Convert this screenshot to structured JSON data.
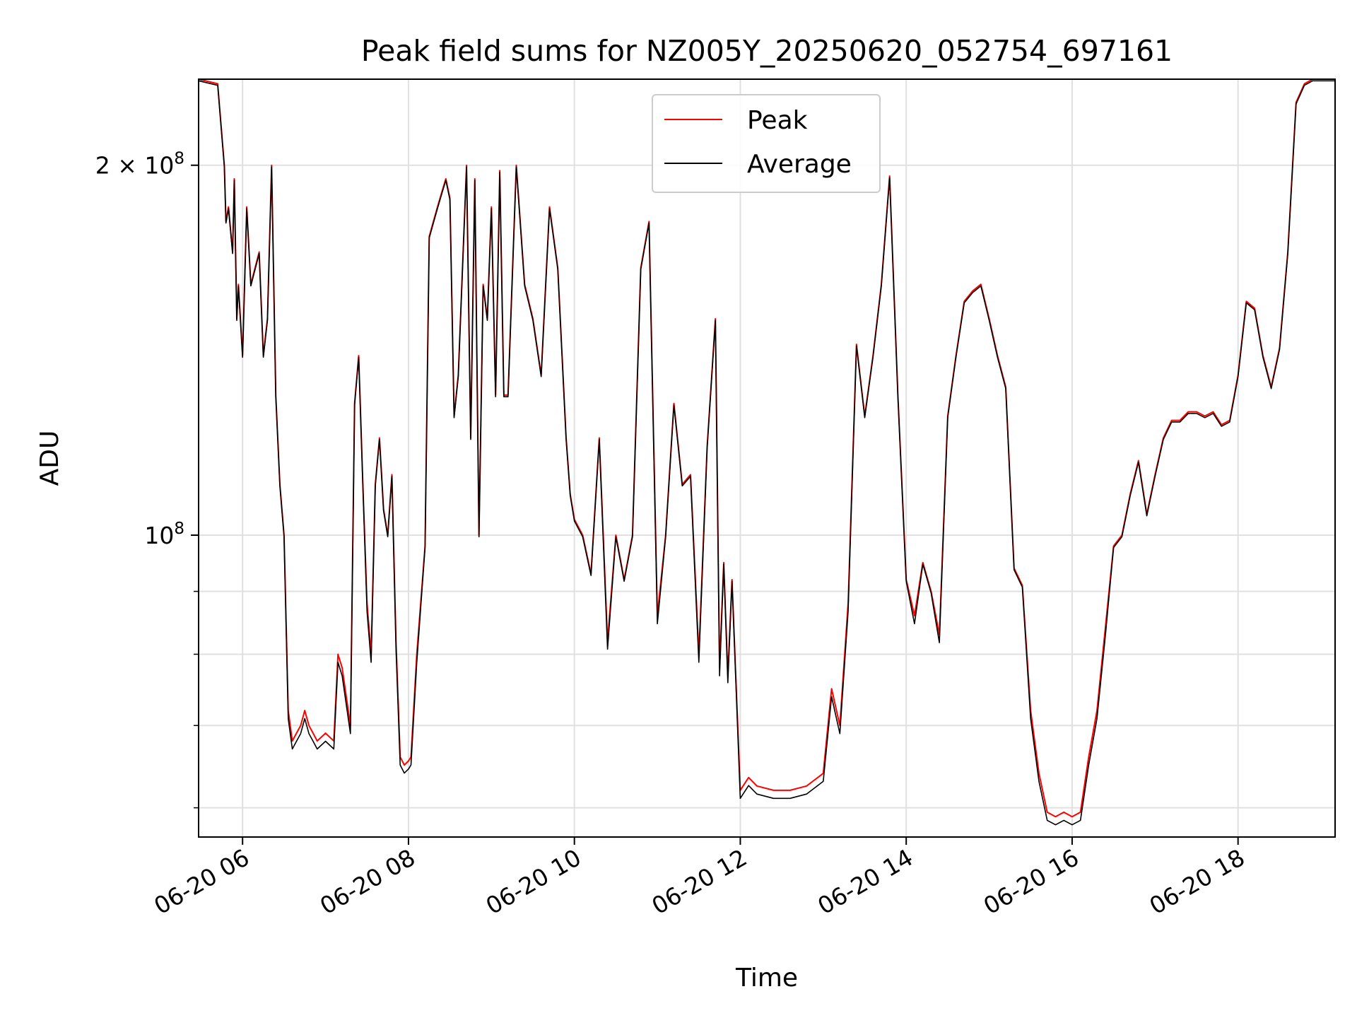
{
  "chart_data": {
    "type": "line",
    "title": "Peak field sums for NZ005Y_20250620_052754_697161",
    "xlabel": "Time",
    "ylabel": "ADU",
    "y_scale": "log",
    "grid": true,
    "legend_position": "top-center",
    "x_tick_labels": [
      "06-20 06",
      "06-20 08",
      "06-20 10",
      "06-20 12",
      "06-20 14",
      "06-20 16",
      "06-20 18"
    ],
    "x_ticks_hours": [
      6,
      8,
      10,
      12,
      14,
      16,
      18
    ],
    "xlim_hours": [
      5.47,
      19.17
    ],
    "y_major_ticks": [
      {
        "value": 100000000,
        "mantissa": "",
        "exponent": "8"
      },
      {
        "value": 200000000,
        "mantissa": "2 × ",
        "exponent": "8"
      }
    ],
    "y_minor_ticks": [
      60000000,
      70000000,
      80000000,
      90000000
    ],
    "ylim": [
      56800000,
      235000000
    ],
    "series": [
      {
        "name": "Peak",
        "color": "#ff0000"
      },
      {
        "name": "Average",
        "color": "#000000"
      }
    ],
    "x_hours": [
      5.47,
      5.7,
      5.78,
      5.8,
      5.83,
      5.88,
      5.9,
      5.93,
      5.95,
      6.0,
      6.05,
      6.1,
      6.2,
      6.25,
      6.3,
      6.35,
      6.4,
      6.45,
      6.5,
      6.55,
      6.6,
      6.65,
      6.7,
      6.75,
      6.8,
      6.85,
      6.9,
      6.95,
      7.0,
      7.05,
      7.1,
      7.15,
      7.2,
      7.3,
      7.35,
      7.4,
      7.45,
      7.5,
      7.55,
      7.6,
      7.65,
      7.7,
      7.75,
      7.8,
      7.85,
      7.9,
      7.95,
      8.0,
      8.03,
      8.1,
      8.2,
      8.25,
      8.3,
      8.35,
      8.4,
      8.45,
      8.5,
      8.55,
      8.6,
      8.7,
      8.75,
      8.8,
      8.85,
      8.9,
      8.95,
      9.0,
      9.05,
      9.1,
      9.15,
      9.2,
      9.3,
      9.4,
      9.5,
      9.6,
      9.7,
      9.8,
      9.9,
      9.95,
      10.0,
      10.1,
      10.2,
      10.3,
      10.4,
      10.5,
      10.6,
      10.7,
      10.8,
      10.9,
      11.0,
      11.1,
      11.2,
      11.3,
      11.4,
      11.5,
      11.6,
      11.7,
      11.75,
      11.8,
      11.85,
      11.9,
      12.0,
      12.1,
      12.2,
      12.4,
      12.6,
      12.8,
      13.0,
      13.1,
      13.2,
      13.3,
      13.4,
      13.5,
      13.6,
      13.7,
      13.8,
      13.9,
      14.0,
      14.1,
      14.2,
      14.3,
      14.4,
      14.5,
      14.6,
      14.7,
      14.8,
      14.9,
      15.0,
      15.1,
      15.2,
      15.3,
      15.4,
      15.5,
      15.6,
      15.7,
      15.8,
      15.9,
      16.0,
      16.1,
      16.2,
      16.3,
      16.4,
      16.5,
      16.6,
      16.7,
      16.8,
      16.9,
      17.0,
      17.1,
      17.2,
      17.3,
      17.4,
      17.5,
      17.6,
      17.7,
      17.8,
      17.9,
      18.0,
      18.1,
      18.2,
      18.3,
      18.4,
      18.5,
      18.6,
      18.7,
      18.8,
      18.9,
      19.0,
      19.17
    ],
    "peak_values": [
      235000000,
      233000000,
      200000000,
      180000000,
      185000000,
      170000000,
      195000000,
      150000000,
      160000000,
      140000000,
      185000000,
      160000000,
      170000000,
      140000000,
      150000000,
      200000000,
      130000000,
      110000000,
      100000000,
      72000000,
      68000000,
      69000000,
      70000000,
      72000000,
      70000000,
      69000000,
      68000000,
      68500000,
      69000000,
      68500000,
      68000000,
      80000000,
      78000000,
      70000000,
      128000000,
      140000000,
      110000000,
      88000000,
      80000000,
      110000000,
      120000000,
      105000000,
      100000000,
      112000000,
      82000000,
      66000000,
      65000000,
      65500000,
      66000000,
      80000000,
      98000000,
      175000000,
      180000000,
      185000000,
      190000000,
      195000000,
      188000000,
      125000000,
      135000000,
      200000000,
      120000000,
      195000000,
      100000000,
      160000000,
      150000000,
      185000000,
      130000000,
      198000000,
      130000000,
      130000000,
      200000000,
      160000000,
      150000000,
      135000000,
      185000000,
      165000000,
      120000000,
      108000000,
      103000000,
      100000000,
      93000000,
      120000000,
      82000000,
      100000000,
      92000000,
      100000000,
      165000000,
      180000000,
      86000000,
      100000000,
      128000000,
      110000000,
      112000000,
      80000000,
      118000000,
      150000000,
      78000000,
      95000000,
      77000000,
      92000000,
      62000000,
      63500000,
      62500000,
      62000000,
      62000000,
      62500000,
      64000000,
      75000000,
      70000000,
      88000000,
      143000000,
      125000000,
      140000000,
      160000000,
      196000000,
      130000000,
      92000000,
      86000000,
      95000000,
      90000000,
      83000000,
      125000000,
      140000000,
      155000000,
      158000000,
      160000000,
      150000000,
      140000000,
      132000000,
      94000000,
      91000000,
      72000000,
      64000000,
      59500000,
      59000000,
      59500000,
      59000000,
      59500000,
      66000000,
      72000000,
      84000000,
      98000000,
      100000000,
      108000000,
      115000000,
      104000000,
      112000000,
      120000000,
      124000000,
      124000000,
      126000000,
      126000000,
      125000000,
      126000000,
      123000000,
      124000000,
      135000000,
      155000000,
      153000000,
      140000000,
      132000000,
      142000000,
      170000000,
      225000000,
      233000000,
      235000000,
      235000000,
      235000000
    ]
  },
  "legend": {
    "peak_label": "Peak",
    "average_label": "Average"
  }
}
